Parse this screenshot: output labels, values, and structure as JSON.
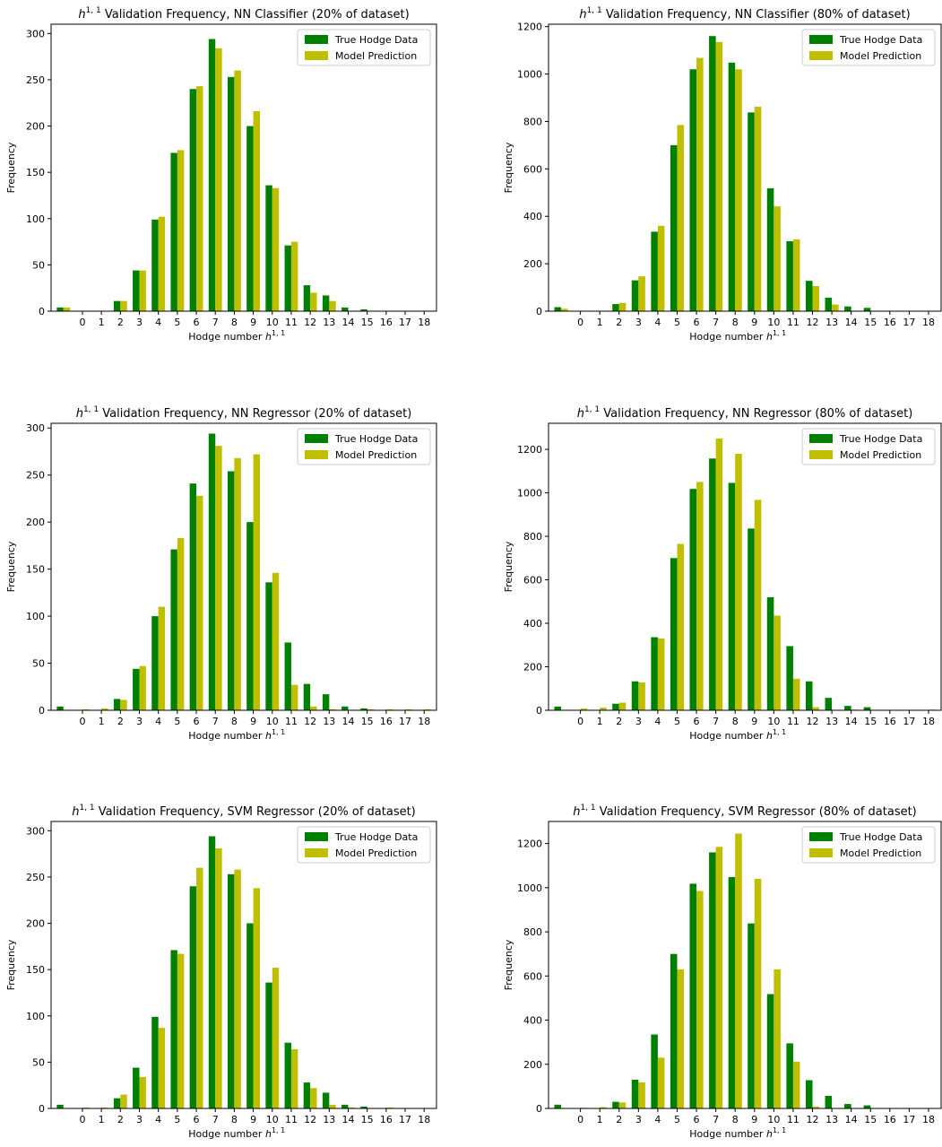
{
  "figure": {
    "colors": {
      "true": "#008000",
      "pred": "#bfbf00",
      "axis": "#000000"
    },
    "legend": {
      "true_label": "True Hodge Data",
      "pred_label": "Model Prediction"
    },
    "xlabel_text": "Hodge number",
    "ylabel_text": "Frequency",
    "title_suffix": "Validation Frequency"
  },
  "chart_data": [
    {
      "type": "bar",
      "title": "h^{1,1} Validation Frequency, NN Classifier (20% of dataset)",
      "title_main": "Validation Frequency, NN Classifier (20% of dataset)",
      "xlabel": "Hodge number h^{1,1}",
      "ylabel": "Frequency",
      "legend_position": "top-right",
      "categories": [
        "0",
        "1",
        "2",
        "3",
        "4",
        "5",
        "6",
        "7",
        "8",
        "9",
        "10",
        "11",
        "12",
        "13",
        "14",
        "15",
        "16",
        "17",
        "18"
      ],
      "x_values": [
        -1,
        0,
        1,
        2,
        3,
        4,
        5,
        6,
        7,
        8,
        9,
        10,
        11,
        12,
        13,
        14,
        15,
        16,
        17,
        18
      ],
      "ylim": [
        0,
        310
      ],
      "yticks": [
        0,
        50,
        100,
        150,
        200,
        250,
        300
      ],
      "series": [
        {
          "name": "True Hodge Data",
          "values": [
            4,
            0,
            0,
            11,
            44,
            99,
            171,
            240,
            294,
            253,
            200,
            136,
            71,
            28,
            17,
            4,
            2,
            0,
            0,
            0
          ]
        },
        {
          "name": "Model Prediction",
          "values": [
            4,
            0,
            0,
            11,
            44,
            102,
            174,
            243,
            284,
            260,
            216,
            133,
            75,
            20,
            11,
            0,
            0,
            0,
            0,
            0
          ]
        }
      ]
    },
    {
      "type": "bar",
      "title": "h^{1,1} Validation Frequency, NN Classifier (80% of dataset)",
      "title_main": "Validation Frequency, NN Classifier (80% of dataset)",
      "xlabel": "Hodge number h^{1,1}",
      "ylabel": "Frequency",
      "legend_position": "top-right",
      "categories": [
        "0",
        "1",
        "2",
        "3",
        "4",
        "5",
        "6",
        "7",
        "8",
        "9",
        "10",
        "11",
        "12",
        "13",
        "14",
        "15",
        "16",
        "17",
        "18"
      ],
      "x_values": [
        -1,
        0,
        1,
        2,
        3,
        4,
        5,
        6,
        7,
        8,
        9,
        10,
        11,
        12,
        13,
        14,
        15,
        16,
        17,
        18
      ],
      "ylim": [
        0,
        1210
      ],
      "yticks": [
        0,
        200,
        400,
        600,
        800,
        1000,
        1200
      ],
      "series": [
        {
          "name": "True Hodge Data",
          "values": [
            17,
            0,
            0,
            30,
            130,
            335,
            700,
            1020,
            1160,
            1048,
            838,
            518,
            295,
            128,
            57,
            20,
            14,
            0,
            0,
            0
          ]
        },
        {
          "name": "Model Prediction",
          "values": [
            10,
            0,
            0,
            35,
            147,
            360,
            785,
            1068,
            1135,
            1020,
            862,
            442,
            303,
            106,
            28,
            0,
            0,
            0,
            0,
            0
          ]
        }
      ]
    },
    {
      "type": "bar",
      "title": "h^{1,1} Validation Frequency, NN Regressor (20% of dataset)",
      "title_main": "Validation Frequency, NN Regressor (20% of dataset)",
      "xlabel": "Hodge number h^{1,1}",
      "ylabel": "Frequency",
      "legend_position": "top-right",
      "categories": [
        "0",
        "1",
        "2",
        "3",
        "4",
        "5",
        "6",
        "7",
        "8",
        "9",
        "10",
        "11",
        "12",
        "13",
        "14",
        "15",
        "16",
        "17",
        "18"
      ],
      "x_values": [
        -1,
        0,
        1,
        2,
        3,
        4,
        5,
        6,
        7,
        8,
        9,
        10,
        11,
        12,
        13,
        14,
        15,
        16,
        17,
        18
      ],
      "ylim": [
        0,
        305
      ],
      "yticks": [
        0,
        50,
        100,
        150,
        200,
        250,
        300
      ],
      "series": [
        {
          "name": "True Hodge Data",
          "values": [
            4,
            0,
            0,
            12,
            44,
            100,
            171,
            241,
            294,
            254,
            200,
            136,
            72,
            28,
            17,
            4,
            2,
            0,
            0,
            0
          ]
        },
        {
          "name": "Model Prediction",
          "values": [
            0,
            1,
            2,
            11,
            47,
            110,
            183,
            228,
            281,
            268,
            272,
            146,
            27,
            4,
            1,
            0,
            1,
            1,
            1,
            1
          ]
        }
      ]
    },
    {
      "type": "bar",
      "title": "h^{1,1} Validation Frequency, NN Regressor (80% of dataset)",
      "title_main": "Validation Frequency, NN Regressor (80% of dataset)",
      "xlabel": "Hodge number h^{1,1}",
      "ylabel": "Frequency",
      "legend_position": "top-right",
      "categories": [
        "0",
        "1",
        "2",
        "3",
        "4",
        "5",
        "6",
        "7",
        "8",
        "9",
        "10",
        "11",
        "12",
        "13",
        "14",
        "15",
        "16",
        "17",
        "18"
      ],
      "x_values": [
        -1,
        0,
        1,
        2,
        3,
        4,
        5,
        6,
        7,
        8,
        9,
        10,
        11,
        12,
        13,
        14,
        15,
        16,
        17,
        18
      ],
      "ylim": [
        0,
        1320
      ],
      "yticks": [
        0,
        200,
        400,
        600,
        800,
        1000,
        1200
      ],
      "series": [
        {
          "name": "True Hodge Data",
          "values": [
            17,
            0,
            0,
            30,
            133,
            336,
            700,
            1018,
            1158,
            1046,
            836,
            520,
            295,
            133,
            57,
            20,
            14,
            0,
            0,
            0
          ]
        },
        {
          "name": "Model Prediction",
          "values": [
            0,
            8,
            12,
            35,
            128,
            330,
            765,
            1050,
            1250,
            1180,
            968,
            435,
            145,
            14,
            2,
            3,
            2,
            2,
            2,
            3
          ]
        }
      ]
    },
    {
      "type": "bar",
      "title": "h^{1,1} Validation Frequency, SVM Regressor (20% of dataset)",
      "title_main": "Validation Frequency, SVM Regressor (20% of dataset)",
      "xlabel": "Hodge number h^{1,1}",
      "ylabel": "Frequency",
      "legend_position": "top-right",
      "categories": [
        "0",
        "1",
        "2",
        "3",
        "4",
        "5",
        "6",
        "7",
        "8",
        "9",
        "10",
        "11",
        "12",
        "13",
        "14",
        "15",
        "16",
        "17",
        "18"
      ],
      "x_values": [
        -1,
        0,
        1,
        2,
        3,
        4,
        5,
        6,
        7,
        8,
        9,
        10,
        11,
        12,
        13,
        14,
        15,
        16,
        17,
        18
      ],
      "ylim": [
        0,
        310
      ],
      "yticks": [
        0,
        50,
        100,
        150,
        200,
        250,
        300
      ],
      "series": [
        {
          "name": "True Hodge Data",
          "values": [
            4,
            0,
            0,
            11,
            44,
            99,
            171,
            240,
            294,
            253,
            200,
            136,
            71,
            28,
            17,
            4,
            2,
            0,
            0,
            0
          ]
        },
        {
          "name": "Model Prediction",
          "values": [
            0,
            1,
            1,
            15,
            34,
            87,
            167,
            260,
            281,
            258,
            238,
            152,
            64,
            22,
            4,
            1,
            0,
            1,
            0,
            0
          ]
        }
      ]
    },
    {
      "type": "bar",
      "title": "h^{1,1} Validation Frequency, SVM Regressor (80% of dataset)",
      "title_main": "Validation Frequency, SVM Regressor (80% of dataset)",
      "xlabel": "Hodge number h^{1,1}",
      "ylabel": "Frequency",
      "legend_position": "top-right",
      "categories": [
        "0",
        "1",
        "2",
        "3",
        "4",
        "5",
        "6",
        "7",
        "8",
        "9",
        "10",
        "11",
        "12",
        "13",
        "14",
        "15",
        "16",
        "17",
        "18"
      ],
      "x_values": [
        -1,
        0,
        1,
        2,
        3,
        4,
        5,
        6,
        7,
        8,
        9,
        10,
        11,
        12,
        13,
        14,
        15,
        16,
        17,
        18
      ],
      "ylim": [
        0,
        1300
      ],
      "yticks": [
        0,
        200,
        400,
        600,
        800,
        1000,
        1200
      ],
      "series": [
        {
          "name": "True Hodge Data",
          "values": [
            17,
            0,
            0,
            30,
            130,
            335,
            700,
            1018,
            1160,
            1048,
            838,
            518,
            295,
            128,
            57,
            20,
            14,
            0,
            0,
            0
          ]
        },
        {
          "name": "Model Prediction",
          "values": [
            0,
            3,
            6,
            27,
            118,
            230,
            630,
            985,
            1185,
            1245,
            1040,
            630,
            212,
            8,
            1,
            0,
            1,
            0,
            0,
            0
          ]
        }
      ]
    }
  ]
}
